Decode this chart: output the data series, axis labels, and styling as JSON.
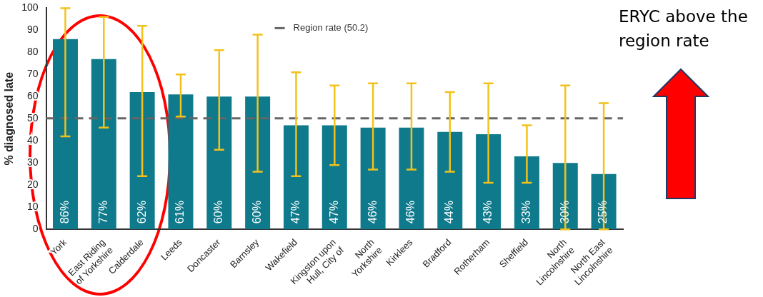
{
  "chart_data": {
    "type": "bar",
    "ylabel": "% diagnosed late",
    "categories": [
      "York",
      "East Riding of Yorkshire",
      "Calderdale",
      "Leeds",
      "Doncaster",
      "Barnsley",
      "Wakefield",
      "Kingston upon Hull, City of",
      "North Yorkshire",
      "Kirklees",
      "Bradford",
      "Rotherham",
      "Sheffield",
      "North Lincolnshire",
      "North East Lincolnshire"
    ],
    "series": [
      {
        "color": "#0e7a8c",
        "values": [
          86,
          77,
          62,
          61,
          60,
          60,
          47,
          47,
          46,
          46,
          44,
          43,
          33,
          30,
          25
        ],
        "errors": [
          [
            42,
            100
          ],
          [
            46,
            96
          ],
          [
            24,
            92
          ],
          [
            51,
            70
          ],
          [
            36,
            81
          ],
          [
            26,
            88
          ],
          [
            24,
            71
          ],
          [
            29,
            65
          ],
          [
            27,
            66
          ],
          [
            27,
            66
          ],
          [
            26,
            62
          ],
          [
            21,
            66
          ],
          [
            21,
            47
          ],
          [
            0,
            65
          ],
          [
            0,
            57
          ]
        ],
        "value_labels": [
          "86%",
          "77%",
          "62%",
          "61%",
          "60%",
          "60%",
          "47%",
          "47%",
          "46%",
          "46%",
          "44%",
          "43%",
          "33%",
          "30%",
          "25%"
        ]
      }
    ],
    "ylim": [
      0,
      100
    ],
    "yticks": [
      0,
      10,
      20,
      30,
      40,
      50,
      60,
      70,
      80,
      90,
      100
    ],
    "grid": false,
    "legend": "top",
    "ref_lines": [
      {
        "axis": "y",
        "value": 50.2,
        "label": "Region rate (50.2)",
        "color": "#666666",
        "line_style": "dashed"
      }
    ],
    "annotations": [
      "ERYC above the region rate"
    ]
  }
}
